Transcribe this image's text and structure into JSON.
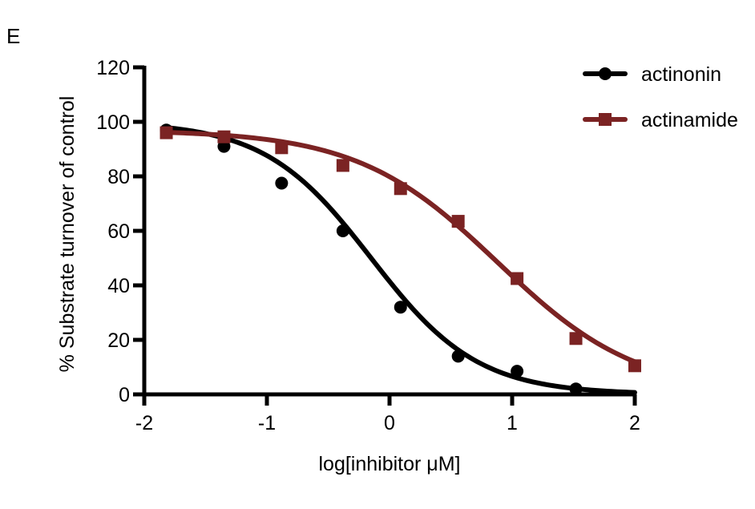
{
  "panel_label": "E",
  "chart_data": {
    "type": "scatter",
    "title": "",
    "xlabel": "log[inhibitor μM]",
    "ylabel": "% Substrate turnover of control",
    "xlim": [
      -2,
      2
    ],
    "ylim": [
      0,
      120
    ],
    "x_ticks": [
      -2,
      -1,
      0,
      1,
      2
    ],
    "y_ticks": [
      0,
      20,
      40,
      60,
      80,
      100,
      120
    ],
    "grid": false,
    "legend_position": "top-right",
    "series": [
      {
        "name": "actinonin",
        "marker": "circle",
        "color": "#000000",
        "x": [
          -1.82,
          -1.35,
          -0.88,
          -0.38,
          0.09,
          0.56,
          1.04,
          1.52
        ],
        "y": [
          97,
          91,
          77.5,
          60,
          32,
          14,
          8.5,
          2
        ],
        "fit": {
          "top": 100,
          "bottom": 0,
          "logIC50": -0.15,
          "hill": -1.0
        }
      },
      {
        "name": "actinamide",
        "marker": "square",
        "color": "#7b2323",
        "x": [
          -1.82,
          -1.35,
          -0.88,
          -0.38,
          0.09,
          0.56,
          1.04,
          1.52,
          2.0
        ],
        "y": [
          96,
          94.5,
          90.5,
          84,
          75.5,
          63.5,
          42.5,
          20.5,
          10.5
        ],
        "fit": {
          "top": 97,
          "bottom": 0,
          "logIC50": 0.88,
          "hill": -0.76
        }
      }
    ]
  }
}
